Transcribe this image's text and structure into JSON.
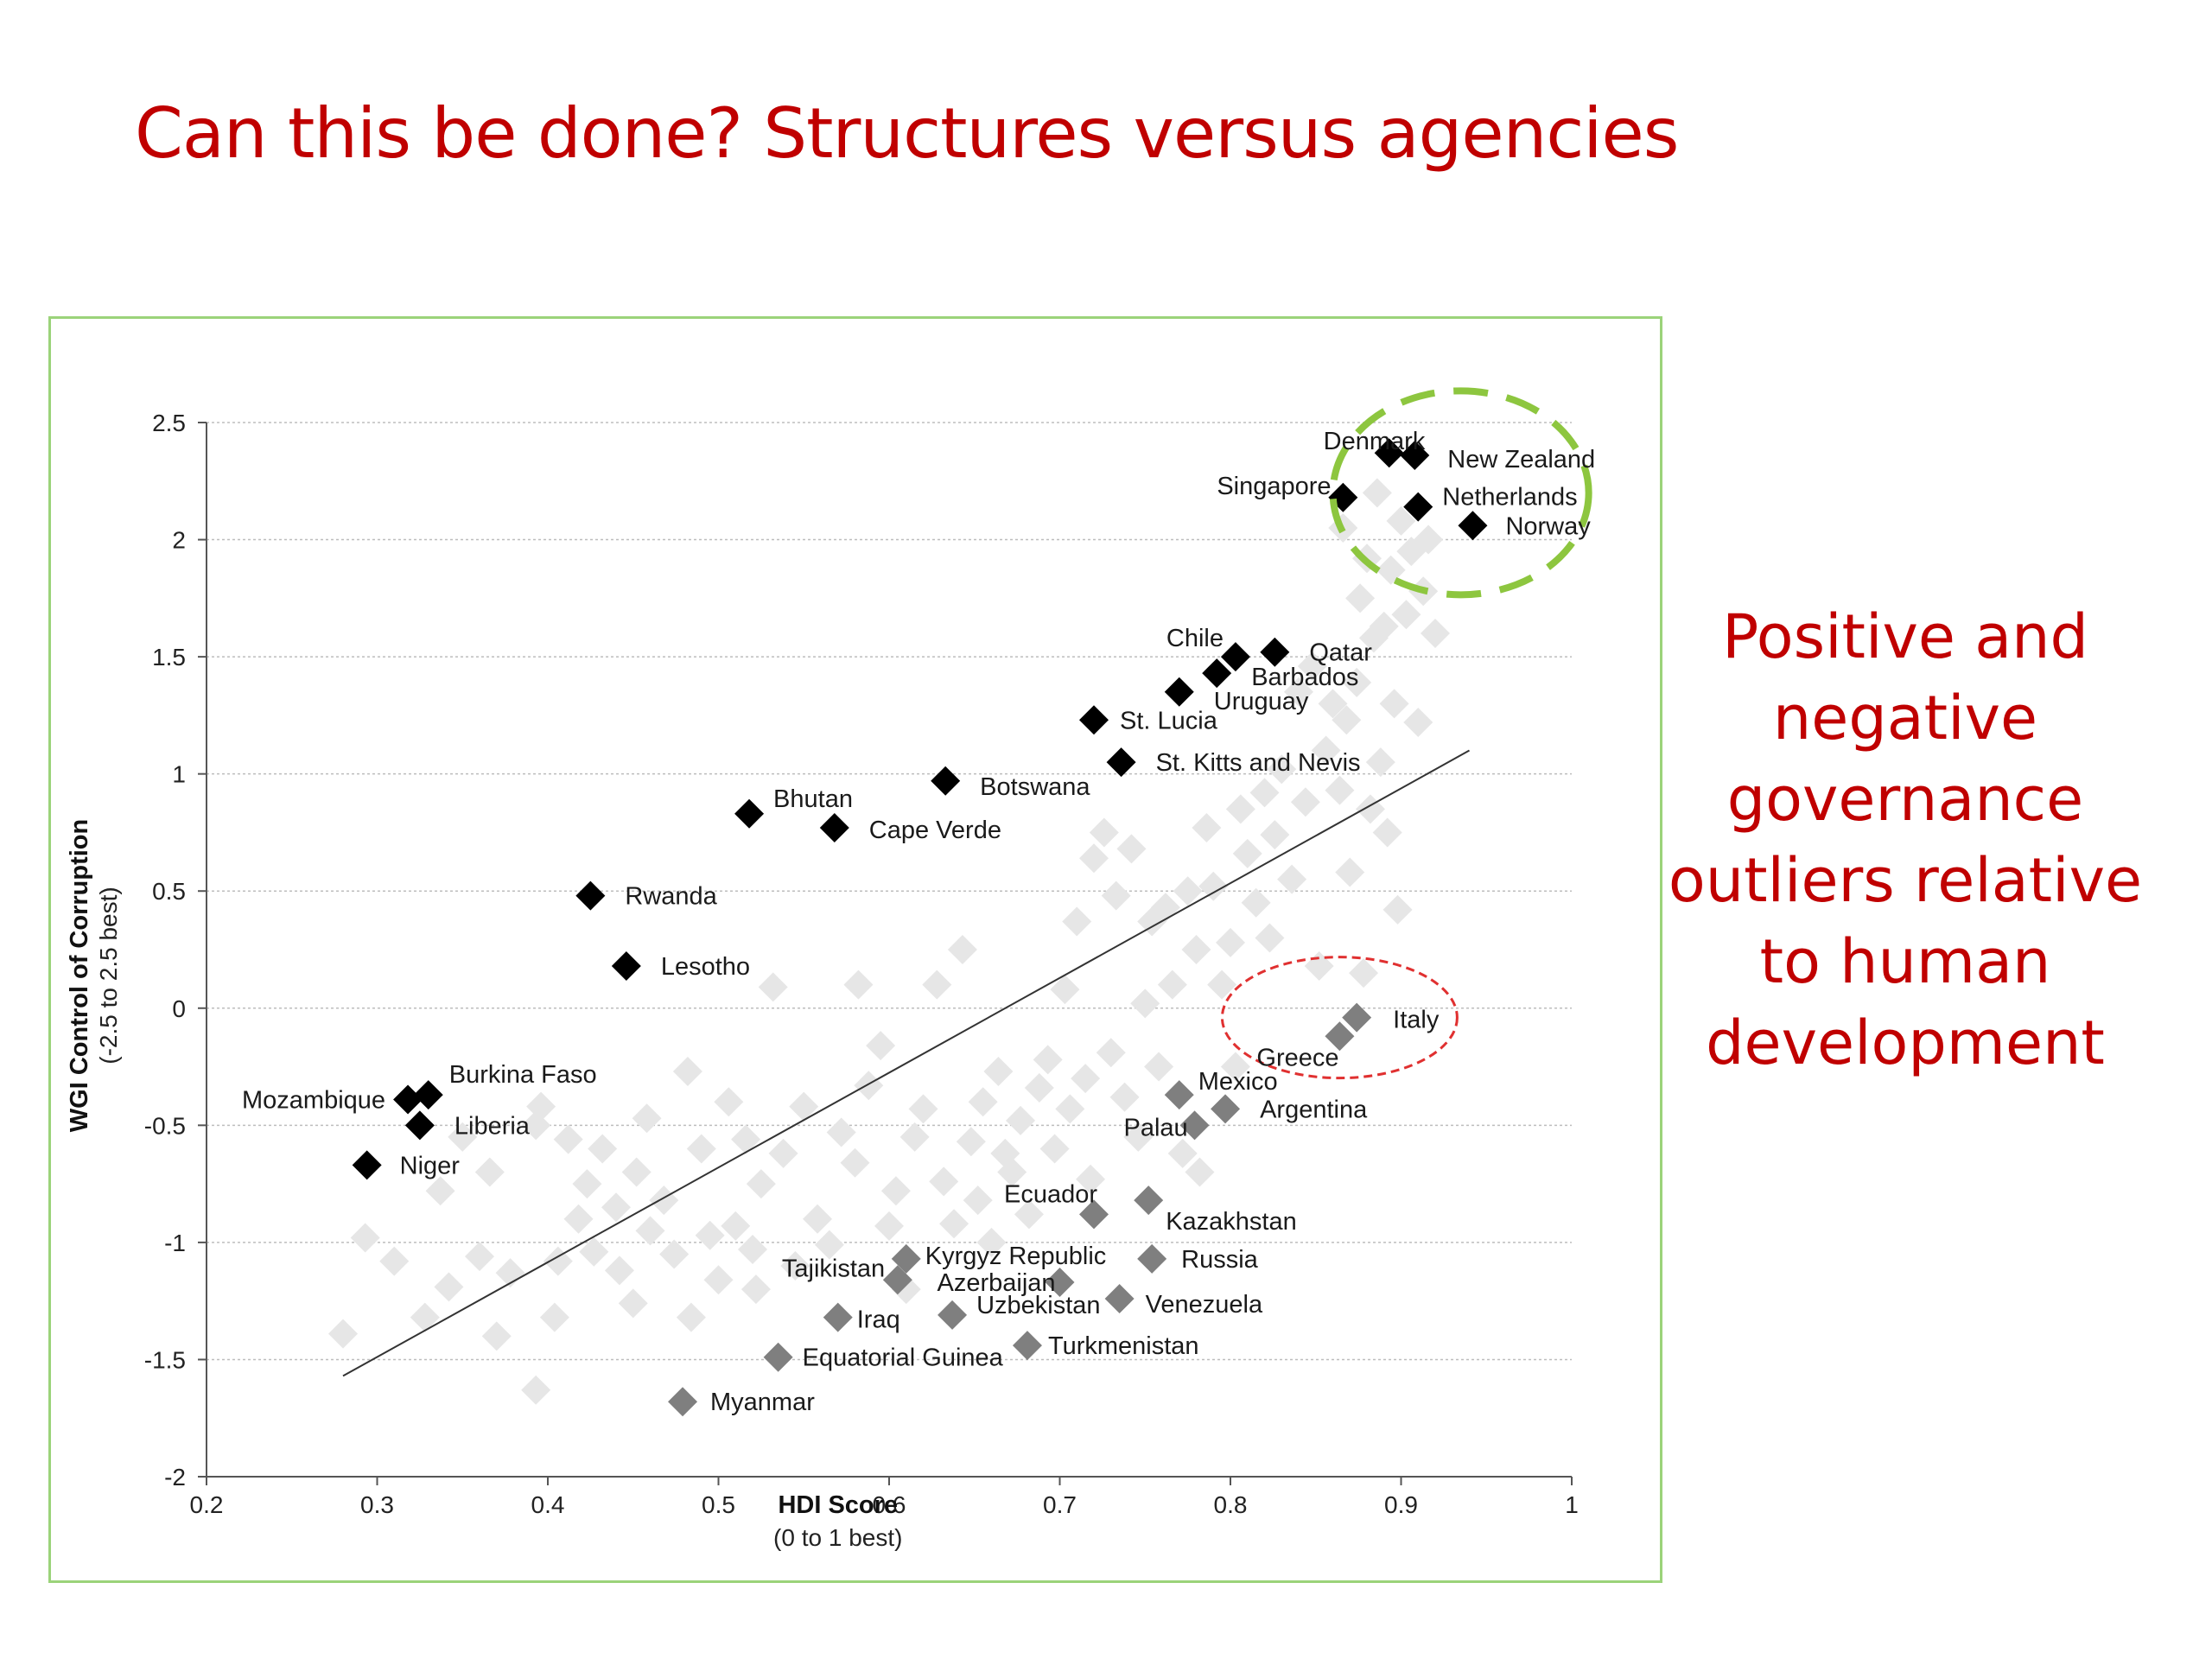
{
  "slide": {
    "title": "Can this be done? Structures versus agencies",
    "side_note": "Positive and negative governance outliers relative to human development"
  },
  "colors": {
    "title": "#c00000",
    "frame": "#9bd37a",
    "positive_marker": "#000000",
    "negative_marker": "#7f7f7f",
    "background_marker": "#e6e6e6",
    "positive_circle": "#8dc63f",
    "negative_circle": "#e03030"
  },
  "chart_data": {
    "type": "scatter",
    "xlabel": "HDI Score",
    "xlabel_sub": "(0 to 1 best)",
    "ylabel": "WGI Control of Corruption",
    "ylabel_sub": "(-2.5 to 2.5 best)",
    "xlim": [
      0.2,
      1
    ],
    "ylim": [
      -2,
      2.5
    ],
    "xticks": [
      "0.2",
      "0.3",
      "0.4",
      "0.5",
      "0.6",
      "0.7",
      "0.8",
      "0.9",
      "1"
    ],
    "yticks": [
      "2.5",
      "2",
      "1.5",
      "1",
      "0.5",
      "0",
      "-0.5",
      "-1",
      "-1.5",
      "-2"
    ],
    "grid": "horizontal",
    "trend_line": {
      "x": [
        0.28,
        0.94
      ],
      "y": [
        -1.57,
        1.1
      ]
    },
    "positive_outliers": [
      {
        "label": "Denmark",
        "x": 0.893,
        "y": 2.37
      },
      {
        "label": "New Zealand",
        "x": 0.908,
        "y": 2.36
      },
      {
        "label": "Singapore",
        "x": 0.866,
        "y": 2.18
      },
      {
        "label": "Netherlands",
        "x": 0.91,
        "y": 2.14
      },
      {
        "label": "Norway",
        "x": 0.942,
        "y": 2.06
      },
      {
        "label": "Chile",
        "x": 0.803,
        "y": 1.5
      },
      {
        "label": "Qatar",
        "x": 0.826,
        "y": 1.52
      },
      {
        "label": "Barbados",
        "x": 0.792,
        "y": 1.43
      },
      {
        "label": "Uruguay",
        "x": 0.77,
        "y": 1.35
      },
      {
        "label": "St. Lucia",
        "x": 0.72,
        "y": 1.23
      },
      {
        "label": "St. Kitts and Nevis",
        "x": 0.736,
        "y": 1.05
      },
      {
        "label": "Botswana",
        "x": 0.633,
        "y": 0.97
      },
      {
        "label": "Bhutan",
        "x": 0.518,
        "y": 0.83
      },
      {
        "label": "Cape Verde",
        "x": 0.568,
        "y": 0.77
      },
      {
        "label": "Rwanda",
        "x": 0.425,
        "y": 0.48
      },
      {
        "label": "Lesotho",
        "x": 0.446,
        "y": 0.18
      },
      {
        "label": "Burkina Faso",
        "x": 0.33,
        "y": -0.37
      },
      {
        "label": "Mozambique",
        "x": 0.318,
        "y": -0.39
      },
      {
        "label": "Liberia",
        "x": 0.325,
        "y": -0.5
      },
      {
        "label": "Niger",
        "x": 0.294,
        "y": -0.67
      }
    ],
    "negative_outliers": [
      {
        "label": "Italy",
        "x": 0.874,
        "y": -0.04
      },
      {
        "label": "Greece",
        "x": 0.864,
        "y": -0.12
      },
      {
        "label": "Mexico",
        "x": 0.77,
        "y": -0.37
      },
      {
        "label": "Argentina",
        "x": 0.797,
        "y": -0.43
      },
      {
        "label": "Palau",
        "x": 0.779,
        "y": -0.5
      },
      {
        "label": "Ecuador",
        "x": 0.72,
        "y": -0.88
      },
      {
        "label": "Kazakhstan",
        "x": 0.752,
        "y": -0.82
      },
      {
        "label": "Russia",
        "x": 0.754,
        "y": -1.07
      },
      {
        "label": "Kyrgyz Republic",
        "x": 0.61,
        "y": -1.07
      },
      {
        "label": "Tajikistan",
        "x": 0.605,
        "y": -1.16
      },
      {
        "label": "Azerbaijan",
        "x": 0.7,
        "y": -1.17
      },
      {
        "label": "Iraq",
        "x": 0.57,
        "y": -1.32
      },
      {
        "label": "Uzbekistan",
        "x": 0.637,
        "y": -1.31
      },
      {
        "label": "Venezuela",
        "x": 0.735,
        "y": -1.24
      },
      {
        "label": "Turkmenistan",
        "x": 0.681,
        "y": -1.44
      },
      {
        "label": "Equatorial Guinea",
        "x": 0.535,
        "y": -1.49
      },
      {
        "label": "Myanmar",
        "x": 0.479,
        "y": -1.68
      }
    ],
    "other_countries": [
      [
        0.28,
        -1.39
      ],
      [
        0.293,
        -0.98
      ],
      [
        0.31,
        -1.08
      ],
      [
        0.328,
        -1.32
      ],
      [
        0.337,
        -0.78
      ],
      [
        0.342,
        -1.19
      ],
      [
        0.35,
        -0.55
      ],
      [
        0.36,
        -1.06
      ],
      [
        0.366,
        -0.7
      ],
      [
        0.37,
        -1.4
      ],
      [
        0.378,
        -1.13
      ],
      [
        0.393,
        -0.5
      ],
      [
        0.393,
        -1.63
      ],
      [
        0.396,
        -0.42
      ],
      [
        0.404,
        -1.32
      ],
      [
        0.406,
        -1.08
      ],
      [
        0.412,
        -0.56
      ],
      [
        0.418,
        -0.9
      ],
      [
        0.423,
        -0.75
      ],
      [
        0.427,
        -1.04
      ],
      [
        0.432,
        -0.6
      ],
      [
        0.44,
        -0.85
      ],
      [
        0.442,
        -1.12
      ],
      [
        0.45,
        -1.26
      ],
      [
        0.452,
        -0.7
      ],
      [
        0.458,
        -0.47
      ],
      [
        0.46,
        -0.95
      ],
      [
        0.468,
        -0.82
      ],
      [
        0.474,
        -1.05
      ],
      [
        0.482,
        -0.27
      ],
      [
        0.484,
        -1.32
      ],
      [
        0.49,
        -0.6
      ],
      [
        0.495,
        -0.97
      ],
      [
        0.5,
        -1.16
      ],
      [
        0.506,
        -0.4
      ],
      [
        0.51,
        -0.93
      ],
      [
        0.516,
        -0.56
      ],
      [
        0.52,
        -1.03
      ],
      [
        0.522,
        -1.2
      ],
      [
        0.525,
        -0.75
      ],
      [
        0.532,
        0.09
      ],
      [
        0.538,
        -0.62
      ],
      [
        0.545,
        -1.1
      ],
      [
        0.55,
        -0.42
      ],
      [
        0.558,
        -0.9
      ],
      [
        0.565,
        -1.01
      ],
      [
        0.572,
        -0.53
      ],
      [
        0.58,
        -0.66
      ],
      [
        0.582,
        0.1
      ],
      [
        0.588,
        -0.33
      ],
      [
        0.595,
        -0.16
      ],
      [
        0.6,
        -0.93
      ],
      [
        0.604,
        -0.78
      ],
      [
        0.61,
        -1.2
      ],
      [
        0.615,
        -0.55
      ],
      [
        0.62,
        -0.43
      ],
      [
        0.628,
        0.1
      ],
      [
        0.632,
        -0.74
      ],
      [
        0.638,
        -0.92
      ],
      [
        0.643,
        0.25
      ],
      [
        0.648,
        -0.57
      ],
      [
        0.652,
        -0.82
      ],
      [
        0.655,
        -0.4
      ],
      [
        0.66,
        -1.0
      ],
      [
        0.664,
        -0.27
      ],
      [
        0.668,
        -0.62
      ],
      [
        0.672,
        -0.7
      ],
      [
        0.677,
        -0.48
      ],
      [
        0.682,
        -0.88
      ],
      [
        0.688,
        -0.34
      ],
      [
        0.693,
        -0.22
      ],
      [
        0.697,
        -0.6
      ],
      [
        0.703,
        0.08
      ],
      [
        0.706,
        -0.43
      ],
      [
        0.71,
        0.37
      ],
      [
        0.715,
        -0.3
      ],
      [
        0.718,
        -0.73
      ],
      [
        0.72,
        0.64
      ],
      [
        0.726,
        0.75
      ],
      [
        0.73,
        -0.19
      ],
      [
        0.733,
        0.48
      ],
      [
        0.738,
        -0.38
      ],
      [
        0.742,
        0.68
      ],
      [
        0.746,
        -0.55
      ],
      [
        0.75,
        0.02
      ],
      [
        0.754,
        0.37
      ],
      [
        0.758,
        -0.25
      ],
      [
        0.762,
        0.43
      ],
      [
        0.766,
        0.1
      ],
      [
        0.772,
        -0.62
      ],
      [
        0.775,
        0.5
      ],
      [
        0.78,
        0.25
      ],
      [
        0.782,
        -0.7
      ],
      [
        0.786,
        0.77
      ],
      [
        0.79,
        0.52
      ],
      [
        0.795,
        0.1
      ],
      [
        0.8,
        0.28
      ],
      [
        0.803,
        -0.25
      ],
      [
        0.806,
        0.85
      ],
      [
        0.81,
        0.66
      ],
      [
        0.815,
        0.45
      ],
      [
        0.82,
        0.92
      ],
      [
        0.823,
        0.3
      ],
      [
        0.826,
        0.74
      ],
      [
        0.83,
        1.02
      ],
      [
        0.836,
        0.55
      ],
      [
        0.84,
        1.35
      ],
      [
        0.844,
        0.88
      ],
      [
        0.848,
        1.46
      ],
      [
        0.852,
        0.18
      ],
      [
        0.856,
        1.1
      ],
      [
        0.86,
        1.3
      ],
      [
        0.864,
        0.93
      ],
      [
        0.866,
        2.05
      ],
      [
        0.868,
        1.23
      ],
      [
        0.87,
        0.58
      ],
      [
        0.874,
        1.39
      ],
      [
        0.876,
        1.75
      ],
      [
        0.878,
        0.15
      ],
      [
        0.88,
        1.92
      ],
      [
        0.882,
        0.85
      ],
      [
        0.884,
        1.58
      ],
      [
        0.886,
        2.2
      ],
      [
        0.888,
        1.05
      ],
      [
        0.89,
        1.63
      ],
      [
        0.892,
        0.75
      ],
      [
        0.894,
        1.87
      ],
      [
        0.896,
        1.3
      ],
      [
        0.898,
        0.42
      ],
      [
        0.9,
        2.08
      ],
      [
        0.903,
        1.68
      ],
      [
        0.906,
        1.95
      ],
      [
        0.91,
        1.22
      ],
      [
        0.913,
        1.78
      ],
      [
        0.916,
        2.0
      ],
      [
        0.92,
        1.6
      ]
    ]
  }
}
